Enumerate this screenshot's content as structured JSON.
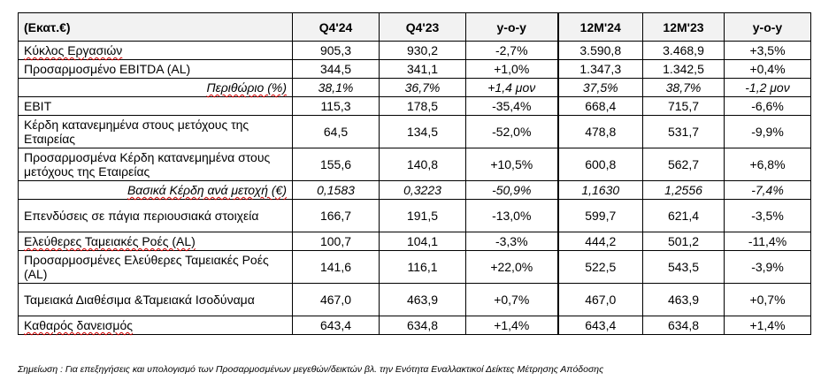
{
  "table": {
    "headers": [
      "(Εκατ.€)",
      "Q4'24",
      "Q4'23",
      "y-o-y",
      "12M'24",
      "12M'23",
      "y-o-y"
    ],
    "rows": [
      {
        "label": "Κύκλος Εργασιών",
        "values": [
          "905,3",
          "930,2",
          "-2,7%",
          "3.590,8",
          "3.468,9",
          "+3,5%"
        ]
      },
      {
        "label": "Προσαρμοσμένο EBITDA (AL)",
        "values": [
          "344,5",
          "341,1",
          "+1,0%",
          "1.347,3",
          "1.342,5",
          "+0,4%"
        ]
      },
      {
        "label": "Περιθώριο (%)",
        "values": [
          "38,1%",
          "36,7%",
          "+1,4 μον",
          "37,5%",
          "38,7%",
          "-1,2 μον"
        ]
      },
      {
        "label": "EBIT",
        "values": [
          "115,3",
          "178,5",
          "-35,4%",
          "668,4",
          "715,7",
          "-6,6%"
        ]
      },
      {
        "label": "Κέρδη κατανεμημένα στους μετόχους της Εταιρείας",
        "values": [
          "64,5",
          "134,5",
          "-52,0%",
          "478,8",
          "531,7",
          "-9,9%"
        ]
      },
      {
        "label": "Προσαρμοσμένα Κέρδη κατανεμημένα στους μετόχους της Εταιρείας",
        "values": [
          "155,6",
          "140,8",
          "+10,5%",
          "600,8",
          "562,7",
          "+6,8%"
        ]
      },
      {
        "label": "Βασικά Κέρδη ανά μετοχή (€)",
        "values": [
          "0,1583",
          "0,3223",
          "-50,9%",
          "1,1630",
          "1,2556",
          "-7,4%"
        ]
      },
      {
        "label": "Επενδύσεις σε πάγια περιουσιακά στοιχεία",
        "values": [
          "166,7",
          "191,5",
          "-13,0%",
          "599,7",
          "621,4",
          "-3,5%"
        ]
      },
      {
        "label": "Ελεύθερες Ταμειακές Ροές (AL)",
        "values": [
          "100,7",
          "104,1",
          "-3,3%",
          "444,2",
          "501,2",
          "-11,4%"
        ]
      },
      {
        "label": "Προσαρμοσμένες Ελεύθερες Ταμειακές Ροές (AL)",
        "values": [
          "141,6",
          "116,1",
          "+22,0%",
          "522,5",
          "543,5",
          "-3,9%"
        ]
      },
      {
        "label": "Ταμειακά Διαθέσιμα &Ταμειακά Ισοδύναμα",
        "values": [
          "467,0",
          "463,9",
          "+0,7%",
          "467,0",
          "463,9",
          "+0,7%"
        ]
      },
      {
        "label": "Καθαρός δανεισμός",
        "values": [
          "643,4",
          "634,8",
          "+1,4%",
          "643,4",
          "634,8",
          "+1,4%"
        ]
      }
    ]
  },
  "note": "Σημείωση : Για επεξηγήσεις και υπολογισμό των Προσαρμοσμένων μεγεθών/δεικτών βλ. την Ενότητα Εναλλακτικοί Δείκτες Μέτρησης Απόδοσης",
  "colors": {
    "header_bg": "#f2f2f2",
    "border": "#000000",
    "spellcheck": "#d00000"
  }
}
